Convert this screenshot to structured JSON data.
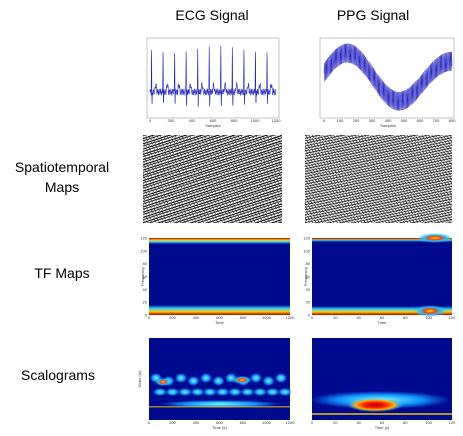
{
  "columns": [
    "ECG Signal",
    "PPG Signal"
  ],
  "rows": [
    {
      "lines": [
        "Spatiotemporal",
        "Maps"
      ]
    },
    {
      "lines": [
        "TF Maps"
      ]
    },
    {
      "lines": [
        "Scalograms"
      ]
    }
  ],
  "panels": {
    "ecg_signal": {
      "xlabel": "Samples",
      "xticks": [
        "0",
        "200",
        "400",
        "600",
        "800",
        "1000",
        "1200"
      ]
    },
    "ppg_signal": {
      "xlabel": "Samples",
      "xticks": [
        "0",
        "100",
        "200",
        "300",
        "400",
        "500",
        "600",
        "700",
        "800"
      ]
    },
    "ecg_tf": {
      "xlabel": "Time",
      "ylabel": "Frequency",
      "xticks": [
        "0",
        "200",
        "400",
        "600",
        "800",
        "1000",
        "1200"
      ],
      "yticks": [
        "0",
        "20",
        "40",
        "60",
        "80",
        "100",
        "120"
      ]
    },
    "ppg_tf": {
      "xlabel": "Time",
      "ylabel": "Frequency",
      "xticks": [
        "0",
        "20",
        "40",
        "60",
        "80",
        "100",
        "120"
      ],
      "yticks": [
        "0",
        "20",
        "40",
        "60",
        "80",
        "100",
        "120"
      ]
    },
    "ecg_scalogram": {
      "xlabel": "Time (s)",
      "ylabel": "Scale (m)",
      "xticks": [
        "0",
        "200",
        "400",
        "600",
        "800",
        "1000",
        "1200"
      ]
    },
    "ppg_scalogram": {
      "xlabel": "Time (s)",
      "xticks": [
        "0",
        "20",
        "40",
        "60",
        "80",
        "100",
        "120"
      ]
    }
  }
}
